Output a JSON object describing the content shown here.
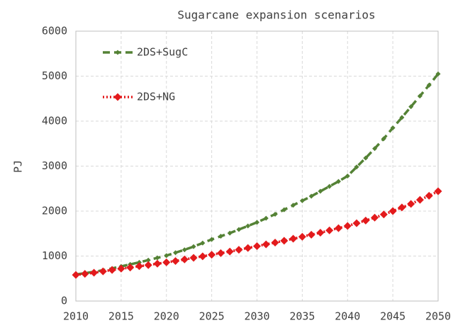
{
  "chart_data": {
    "type": "line",
    "title": "Sugarcane expansion scenarios",
    "y_label": "PJ",
    "x": [
      2010,
      2011,
      2012,
      2013,
      2014,
      2015,
      2016,
      2017,
      2018,
      2019,
      2020,
      2021,
      2022,
      2023,
      2024,
      2025,
      2026,
      2027,
      2028,
      2029,
      2030,
      2031,
      2032,
      2033,
      2034,
      2035,
      2036,
      2037,
      2038,
      2039,
      2040,
      2041,
      2042,
      2043,
      2044,
      2045,
      2046,
      2047,
      2048,
      2049,
      2050
    ],
    "series": [
      {
        "name": "2DS+SugC",
        "color": "#548235",
        "linestyle": "dashed",
        "values": [
          590,
          620,
          650,
          685,
          725,
          770,
          815,
          860,
          910,
          960,
          1010,
          1075,
          1140,
          1210,
          1290,
          1370,
          1440,
          1510,
          1590,
          1670,
          1750,
          1840,
          1930,
          2030,
          2130,
          2230,
          2330,
          2440,
          2550,
          2660,
          2780,
          2980,
          3180,
          3390,
          3610,
          3850,
          4080,
          4320,
          4560,
          4800,
          5050
        ]
      },
      {
        "name": "2DS+NG",
        "color": "#e31a1c",
        "linestyle": "dotted",
        "values": [
          580,
          605,
          630,
          660,
          690,
          720,
          745,
          775,
          800,
          830,
          860,
          890,
          925,
          960,
          995,
          1030,
          1065,
          1100,
          1140,
          1180,
          1220,
          1260,
          1300,
          1340,
          1385,
          1430,
          1475,
          1520,
          1570,
          1620,
          1670,
          1730,
          1790,
          1855,
          1925,
          2000,
          2080,
          2160,
          2250,
          2340,
          2440
        ]
      }
    ],
    "xlim": [
      2010,
      2050
    ],
    "xticks": [
      2010,
      2015,
      2020,
      2025,
      2030,
      2035,
      2040,
      2045,
      2050
    ],
    "ylim": [
      0,
      6000
    ],
    "yticks": [
      0,
      1000,
      2000,
      3000,
      4000,
      5000,
      6000
    ],
    "grid": true,
    "legend": "upper left"
  }
}
